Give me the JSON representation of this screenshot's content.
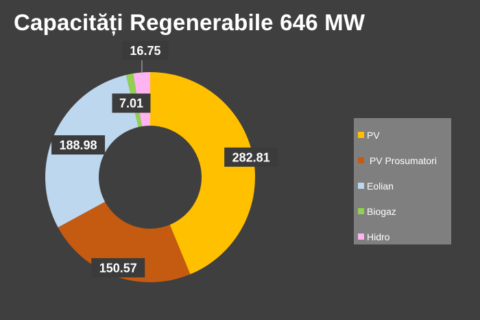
{
  "chart_data": {
    "type": "pie",
    "donut": true,
    "title": "Capacități Regenerabile 646 MW",
    "categories": [
      "PV",
      "PV Prosumatori",
      "Eolian",
      "Biogaz",
      "Hidro"
    ],
    "values": [
      282.81,
      150.57,
      188.98,
      7.01,
      16.75
    ],
    "colors": [
      "#ffc000",
      "#c55a11",
      "#bdd7ee",
      "#92d050",
      "#ffb3f0"
    ],
    "data_labels": [
      "282.81",
      "150.57",
      "188.98",
      "7.01",
      "16.75"
    ],
    "legend": "right",
    "start": "top",
    "direction": "clockwise"
  }
}
